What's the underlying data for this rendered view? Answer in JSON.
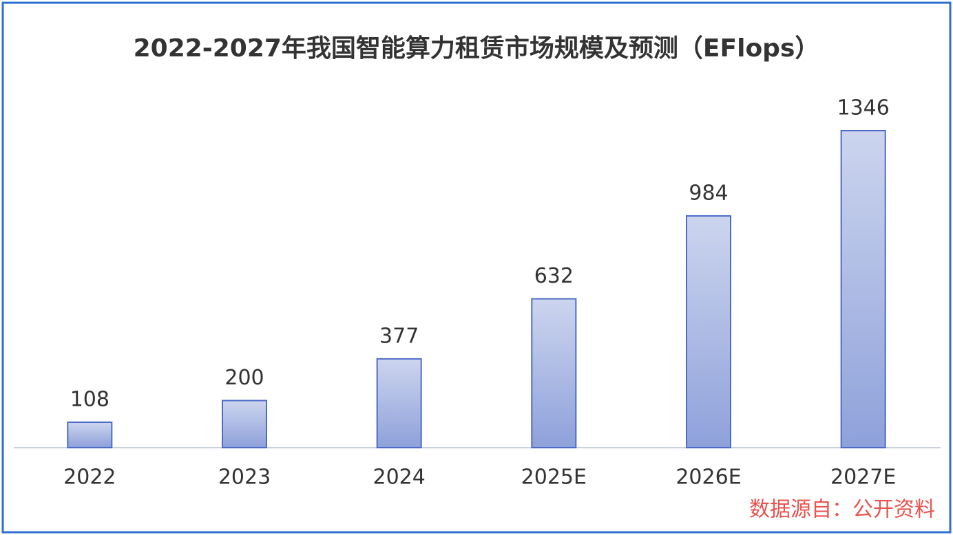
{
  "chart_data": {
    "type": "bar",
    "title": "2022-2027年我国智能算力租赁市场规模及预测（EFlops）",
    "categories": [
      "2022",
      "2023",
      "2024",
      "2025E",
      "2026E",
      "2027E"
    ],
    "values": [
      108,
      200,
      377,
      632,
      984,
      1346
    ],
    "color": "#8ea1da",
    "source": "数据源自：公开资料"
  }
}
